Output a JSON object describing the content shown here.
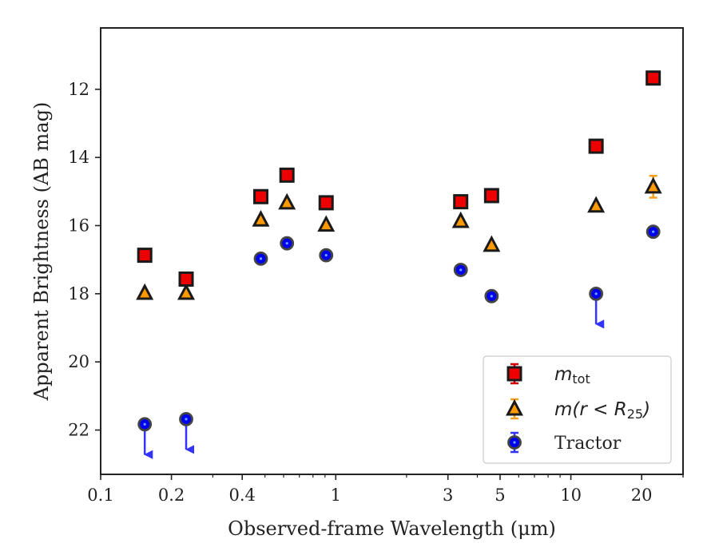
{
  "chart_data": {
    "type": "scatter",
    "xlabel": "Observed-frame Wavelength (μm)",
    "ylabel": "Apparent Brightness (AB mag)",
    "xscale": "log",
    "xlim": [
      0.1,
      30
    ],
    "ylim": [
      23.3,
      10.2
    ],
    "y_inverted": true,
    "xticks": [
      {
        "value": 0.1,
        "label": "0.1"
      },
      {
        "value": 0.2,
        "label": "0.2"
      },
      {
        "value": 0.4,
        "label": "0.4"
      },
      {
        "value": 1,
        "label": "1"
      },
      {
        "value": 3,
        "label": "3"
      },
      {
        "value": 5,
        "label": "5"
      },
      {
        "value": 10,
        "label": "10"
      },
      {
        "value": 20,
        "label": "20"
      }
    ],
    "yticks": [
      {
        "value": 12,
        "label": "12"
      },
      {
        "value": 14,
        "label": "14"
      },
      {
        "value": 16,
        "label": "16"
      },
      {
        "value": 18,
        "label": "18"
      },
      {
        "value": 20,
        "label": "20"
      },
      {
        "value": 22,
        "label": "22"
      }
    ],
    "grid": false,
    "legend_position": "lower-right",
    "series": [
      {
        "name": "m_tot",
        "legend_main": "m",
        "legend_sub": "tot",
        "legend_tail": "",
        "marker": "square",
        "color": "#ee0000",
        "errorbar_color": "#cc0000",
        "points": [
          {
            "x": 0.154,
            "y": 16.87
          },
          {
            "x": 0.231,
            "y": 17.57
          },
          {
            "x": 0.48,
            "y": 15.15
          },
          {
            "x": 0.62,
            "y": 14.52
          },
          {
            "x": 0.91,
            "y": 15.33
          },
          {
            "x": 3.4,
            "y": 15.3
          },
          {
            "x": 4.6,
            "y": 15.12
          },
          {
            "x": 12.8,
            "y": 13.67
          },
          {
            "x": 22.4,
            "y": 11.67
          }
        ]
      },
      {
        "name": "m(r < R_25)",
        "legend_main": "m(r < R",
        "legend_sub": "25",
        "legend_tail": ")",
        "marker": "triangle",
        "color": "#ff9900",
        "errorbar_color": "#f0a020",
        "points": [
          {
            "x": 0.154,
            "y": 17.98
          },
          {
            "x": 0.231,
            "y": 17.98
          },
          {
            "x": 0.48,
            "y": 15.83
          },
          {
            "x": 0.62,
            "y": 15.33
          },
          {
            "x": 0.91,
            "y": 15.98
          },
          {
            "x": 3.4,
            "y": 15.87
          },
          {
            "x": 4.6,
            "y": 16.57
          },
          {
            "x": 12.8,
            "y": 15.42
          },
          {
            "x": 22.4,
            "y": 14.86,
            "err": 0.32
          }
        ]
      },
      {
        "name": "Tractor",
        "legend_main": "Tractor",
        "marker": "circle",
        "color": "#0000ee",
        "errorbar_color": "#3333ff",
        "points": [
          {
            "x": 0.154,
            "y": 21.83,
            "upper_limit": true
          },
          {
            "x": 0.231,
            "y": 21.68,
            "upper_limit": true
          },
          {
            "x": 0.48,
            "y": 16.97
          },
          {
            "x": 0.62,
            "y": 16.52
          },
          {
            "x": 0.91,
            "y": 16.87
          },
          {
            "x": 3.4,
            "y": 17.3
          },
          {
            "x": 4.6,
            "y": 18.07
          },
          {
            "x": 12.8,
            "y": 18.0,
            "upper_limit": true
          },
          {
            "x": 22.4,
            "y": 16.18
          }
        ]
      }
    ]
  }
}
